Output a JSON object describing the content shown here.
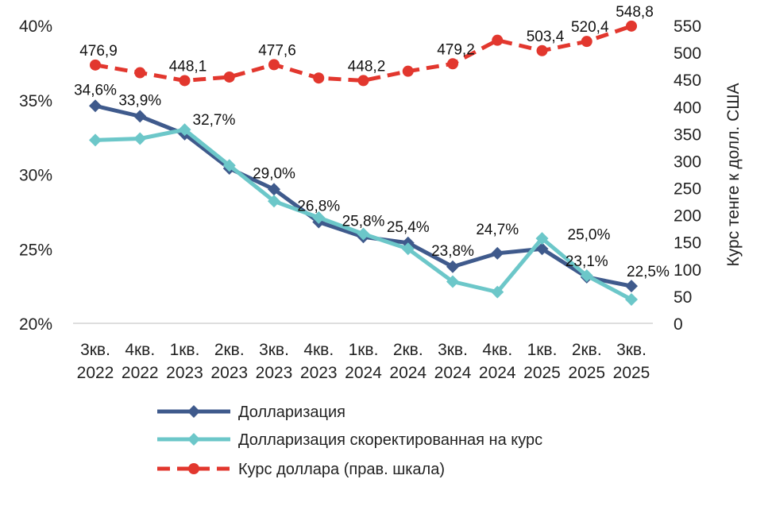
{
  "chart_data": {
    "type": "line",
    "categories": [
      [
        "3кв.",
        "2022"
      ],
      [
        "4кв.",
        "2022"
      ],
      [
        "1кв.",
        "2023"
      ],
      [
        "2кв.",
        "2023"
      ],
      [
        "3кв.",
        "2023"
      ],
      [
        "4кв.",
        "2023"
      ],
      [
        "1кв.",
        "2024"
      ],
      [
        "2кв.",
        "2024"
      ],
      [
        "3кв.",
        "2024"
      ],
      [
        "4кв.",
        "2024"
      ],
      [
        "1кв.",
        "2025"
      ],
      [
        "2кв.",
        "2025"
      ],
      [
        "3кв.",
        "2025"
      ]
    ],
    "y_left": {
      "min": 20,
      "max": 40,
      "ticks": [
        20,
        25,
        30,
        35,
        40
      ],
      "tick_labels": [
        "20%",
        "25%",
        "30%",
        "35%",
        "40%"
      ]
    },
    "y_right": {
      "min": 0,
      "max": 550,
      "ticks": [
        0,
        50,
        100,
        150,
        200,
        250,
        300,
        350,
        400,
        450,
        500,
        550
      ],
      "title": "Курс тенге к долл. США"
    },
    "series": [
      {
        "name": "Долларизация",
        "axis": "left",
        "color": "#3f5a8c",
        "style": "solid",
        "values": [
          34.6,
          33.9,
          32.7,
          30.4,
          29.0,
          26.8,
          25.8,
          25.4,
          23.8,
          24.7,
          25.0,
          23.1,
          22.5
        ],
        "labels": [
          "34,6%",
          "33,9%",
          "32,7%",
          "",
          "29,0%",
          "26,8%",
          "25,8%",
          "25,4%",
          "23,8%",
          "24,7%",
          "25,0%",
          "23,1%",
          "22,5%"
        ]
      },
      {
        "name": "Долларизация скоректированная на курс",
        "axis": "left",
        "color": "#6cc7c9",
        "style": "solid",
        "values": [
          32.3,
          32.4,
          33.0,
          30.6,
          28.2,
          27.1,
          26.0,
          25.0,
          22.8,
          22.1,
          25.7,
          23.2,
          21.6
        ],
        "labels": []
      },
      {
        "name": "Курс доллара (прав. шкала)",
        "axis": "right",
        "color": "#e2372e",
        "style": "dashed",
        "values": [
          476.9,
          462.7,
          448.1,
          454.7,
          477.6,
          452.9,
          448.2,
          465.4,
          479.2,
          522.6,
          503.4,
          520.4,
          548.8
        ],
        "labels": [
          "476,9",
          "",
          "448,1",
          "",
          "477,6",
          "",
          "448,2",
          "",
          "479,2",
          "",
          "503,4",
          "520,4",
          "548,8"
        ]
      }
    ]
  }
}
